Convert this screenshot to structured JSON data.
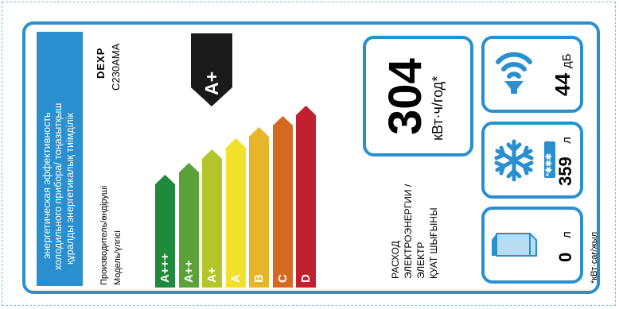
{
  "header": {
    "line1": "энергетическая эффективность",
    "line2": "холодильного прибора/ тоңазытқыш",
    "line3": "құралды энергетикалық тиімділік"
  },
  "brand": {
    "logo": "DEXP",
    "model": "C230AMA"
  },
  "labels": {
    "manufacturer": "Производитель/өндіруші",
    "model": "Модель/үлгісі"
  },
  "classes": [
    {
      "label": "A+++",
      "color": "#1f8a3c"
    },
    {
      "label": "A++",
      "color": "#5aa238"
    },
    {
      "label": "A+",
      "color": "#b3c52b"
    },
    {
      "label": "A",
      "color": "#f2e12a"
    },
    {
      "label": "B",
      "color": "#e7b52a"
    },
    {
      "label": "C",
      "color": "#d46a22"
    },
    {
      "label": "D",
      "color": "#c21f30"
    }
  ],
  "rating": {
    "label": "A+",
    "color": "#1a1a1a"
  },
  "consumption": {
    "value": "304",
    "unit": "кВт·ч/год*",
    "caption1": "РАСХОД",
    "caption2": "ЭЛЕКТРОЭНЕРГИИ /",
    "caption3": "ЭЛЕКТР",
    "caption4": "ҚУАТ ШЫҒЫНЫ"
  },
  "noise": {
    "value": "44",
    "unit": "дБ",
    "icon": "speaker-icon"
  },
  "freezer": {
    "value": "359",
    "unit": "л",
    "icon": "snowflake-icon",
    "stars": "*✱✱✱"
  },
  "fresh": {
    "value": "0",
    "unit": "л",
    "icon": "milk-carton-icon"
  },
  "footnote": "*кВт·сағ/жыл"
}
